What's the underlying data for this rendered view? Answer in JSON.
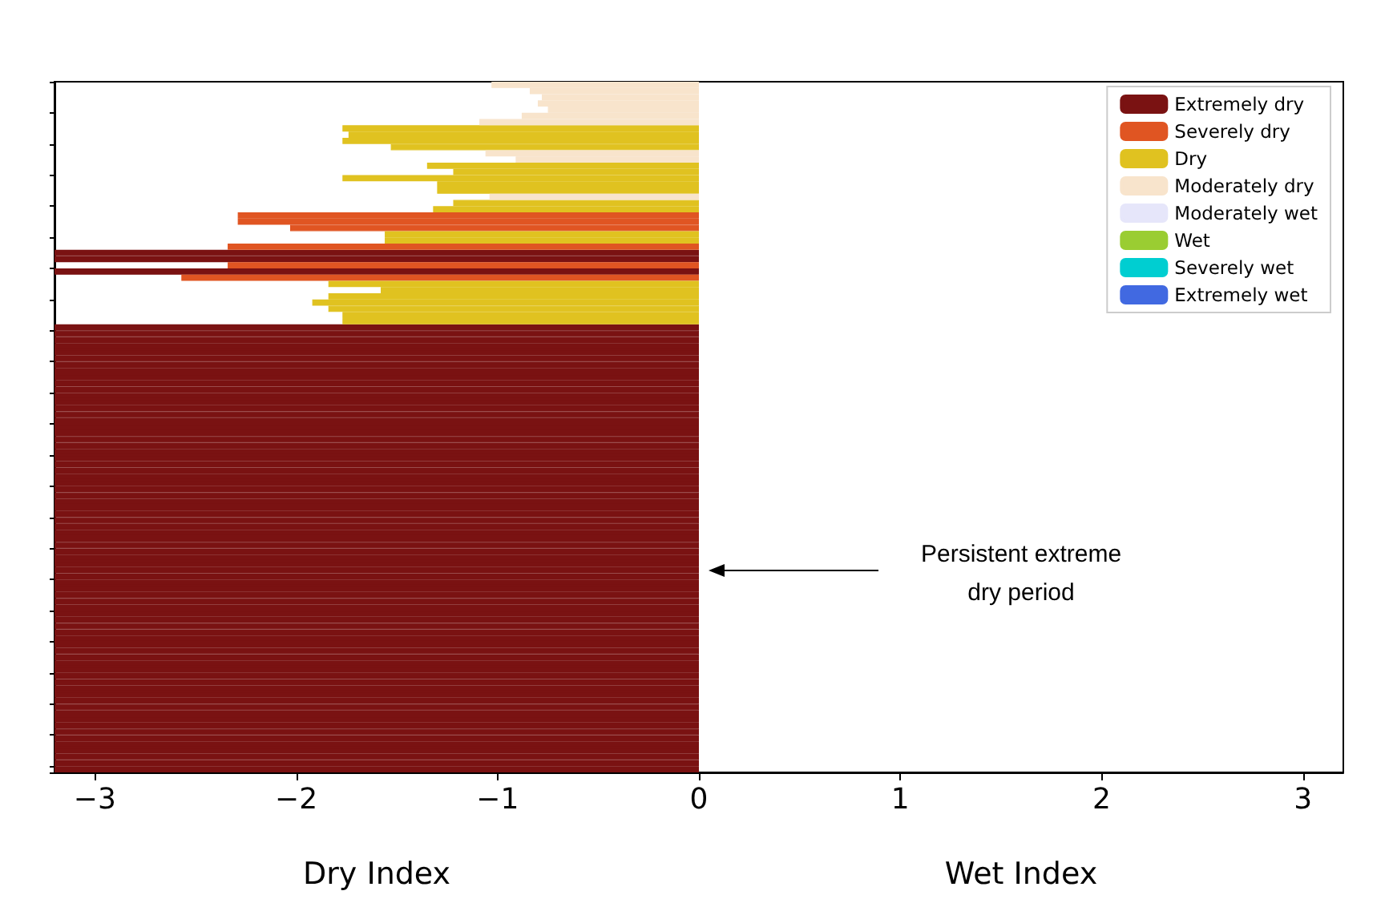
{
  "chart_data": {
    "type": "bar",
    "orientation": "horizontal",
    "xlabel": "Dry Index",
    "annotations": [
      "Wet Index",
      "Persistent extreme\ndry period"
    ],
    "categories": [
      null,
      null,
      null,
      null,
      null,
      null,
      null,
      null,
      null,
      null,
      null,
      null,
      null,
      null,
      null,
      null,
      null,
      null,
      null,
      null,
      null,
      null,
      null,
      null,
      null,
      null,
      null,
      null,
      null,
      null,
      null,
      null,
      null,
      null,
      null,
      null,
      null,
      null,
      null,
      null,
      null,
      null,
      null,
      null,
      null,
      null,
      null,
      null,
      null,
      null,
      null,
      null,
      null,
      null,
      null,
      null,
      null,
      null,
      null,
      null,
      null,
      null,
      null,
      null,
      null,
      null,
      null,
      null,
      null,
      null,
      null,
      null,
      null,
      null,
      null,
      null,
      null,
      null,
      null,
      null,
      null,
      null,
      null,
      null,
      null,
      null,
      null,
      null,
      null,
      null,
      null,
      null,
      null,
      null,
      null,
      null,
      null,
      null,
      null,
      null,
      null,
      null,
      null,
      null,
      null,
      null,
      null,
      null,
      null,
      null,
      null
    ],
    "series": [
      {
        "name": "Extremely dry",
        "color": "#7a1212",
        "values": [
          null,
          null,
          null,
          null,
          null,
          null,
          null,
          null,
          null,
          null,
          null,
          null,
          null,
          null,
          null,
          null,
          null,
          null,
          null,
          null,
          null,
          null,
          null,
          null,
          null,
          null,
          null,
          -3.2,
          -3.2,
          null,
          -3.2,
          null,
          null,
          null,
          null,
          null,
          null,
          null,
          null,
          -3.2,
          -3.2,
          -3.2,
          -3.2,
          -3.2,
          -3.2,
          -3.2,
          -3.2,
          -3.2,
          -3.2,
          -3.2,
          -3.2,
          -3.2,
          -3.2,
          -3.2,
          -3.2,
          -3.2,
          -3.2,
          -3.2,
          -3.2,
          -3.2,
          -3.2,
          -3.2,
          -3.2,
          -3.2,
          -3.2,
          -3.2,
          -3.2,
          -3.2,
          -3.2,
          -3.2,
          -3.2,
          -3.2,
          -3.2,
          -3.2,
          -3.2,
          -3.2,
          -3.2,
          -3.2,
          -3.2,
          -3.2,
          -3.2,
          -3.2,
          -3.2,
          -3.2,
          -3.2,
          -3.2,
          -3.2,
          -3.2,
          -3.2,
          -3.2,
          -3.2,
          -3.2,
          -3.2,
          -3.2,
          -3.2,
          -3.2,
          -3.2,
          -3.2,
          -3.2,
          -3.2,
          -3.2,
          -3.2,
          -3.2,
          -3.2,
          -3.2,
          -3.2,
          -3.2,
          -3.2,
          -3.2,
          -3.2,
          -3.2
        ]
      },
      {
        "name": "Severely dry",
        "color": "#e05522",
        "values": [
          null,
          null,
          null,
          null,
          null,
          null,
          null,
          null,
          null,
          null,
          null,
          null,
          null,
          null,
          null,
          null,
          null,
          null,
          null,
          null,
          null,
          -2.29,
          -2.29,
          -2.03,
          null,
          null,
          -2.34,
          null,
          null,
          -2.34,
          null,
          -2.57,
          null,
          null,
          null,
          null,
          null,
          null,
          null,
          null,
          null,
          null,
          null,
          null,
          null,
          null,
          null,
          null,
          null,
          null,
          null,
          null,
          null,
          null,
          null,
          null,
          null,
          null,
          null,
          null,
          null,
          null,
          null,
          null,
          null,
          null,
          null,
          null,
          null,
          null,
          null,
          null,
          null,
          null,
          null,
          null,
          null,
          null,
          null,
          null,
          null,
          null,
          null,
          null,
          null,
          null,
          null,
          null,
          null,
          null,
          null,
          null,
          null,
          null,
          null,
          null,
          null,
          null,
          null,
          null,
          null,
          null,
          null,
          null,
          null,
          null,
          null,
          null,
          null,
          null,
          null
        ]
      },
      {
        "name": "Dry",
        "color": "#e0c220",
        "values": [
          null,
          null,
          null,
          null,
          null,
          null,
          null,
          -1.77,
          -1.74,
          -1.77,
          -1.53,
          null,
          null,
          -1.35,
          -1.22,
          -1.77,
          -1.3,
          -1.3,
          null,
          -1.22,
          -1.32,
          null,
          null,
          null,
          -1.56,
          -1.56,
          null,
          null,
          null,
          null,
          null,
          null,
          -1.84,
          -1.58,
          -1.84,
          -1.92,
          -1.84,
          -1.77,
          -1.77,
          null,
          null,
          null,
          null,
          null,
          null,
          null,
          null,
          null,
          null,
          null,
          null,
          null,
          null,
          null,
          null,
          null,
          null,
          null,
          null,
          null,
          null,
          null,
          null,
          null,
          null,
          null,
          null,
          null,
          null,
          null,
          null,
          null,
          null,
          null,
          null,
          null,
          null,
          null,
          null,
          null,
          null,
          null,
          null,
          null,
          null,
          null,
          null,
          null,
          null,
          null,
          null,
          null,
          null,
          null,
          null,
          null,
          null,
          null,
          null,
          null,
          null,
          null,
          null,
          null,
          null,
          null,
          null,
          null,
          null,
          null,
          null
        ]
      },
      {
        "name": "Moderately dry",
        "color": "#f8e4cc",
        "values": [
          -1.03,
          -0.84,
          -0.78,
          -0.8,
          -0.75,
          -0.88,
          -1.09,
          null,
          null,
          null,
          null,
          -1.06,
          -0.91,
          null,
          null,
          null,
          null,
          null,
          -1.04,
          null,
          null,
          null,
          null,
          null,
          null,
          null,
          null,
          null,
          null,
          null,
          null,
          null,
          null,
          null,
          null,
          null,
          null,
          null,
          null,
          null,
          null,
          null,
          null,
          null,
          null,
          null,
          null,
          null,
          null,
          null,
          null,
          null,
          null,
          null,
          null,
          null,
          null,
          null,
          null,
          null,
          null,
          null,
          null,
          null,
          null,
          null,
          null,
          null,
          null,
          null,
          null,
          null,
          null,
          null,
          null,
          null,
          null,
          null,
          null,
          null,
          null,
          null,
          null,
          null,
          null,
          null,
          null,
          null,
          null,
          null,
          null,
          null,
          null,
          null,
          null,
          null,
          null,
          null,
          null,
          null,
          null,
          null,
          null,
          null,
          null,
          null,
          null,
          null,
          null,
          null,
          null
        ]
      },
      {
        "name": "Moderately wet",
        "color": "#e6e6fa",
        "values": [
          null,
          null,
          null,
          null,
          null,
          null,
          null,
          null,
          null,
          null,
          null,
          null,
          null,
          null,
          null,
          null,
          null,
          null,
          null,
          null,
          null,
          null,
          null,
          null,
          null,
          null,
          null,
          null,
          null,
          null,
          null,
          null,
          null,
          null,
          null,
          null,
          null,
          null,
          null,
          null,
          null,
          null,
          null,
          null,
          null,
          null,
          null,
          null,
          null,
          null,
          null,
          null,
          null,
          null,
          null,
          null,
          null,
          null,
          null,
          null,
          null,
          null,
          null,
          null,
          null,
          null,
          null,
          null,
          null,
          null,
          null,
          null,
          null,
          null,
          null,
          null,
          null,
          null,
          null,
          null,
          null,
          null,
          null,
          null,
          null,
          null,
          null,
          null,
          null,
          null,
          null,
          null,
          null,
          null,
          null,
          null,
          null,
          null,
          null,
          null,
          null,
          null,
          null,
          null,
          null,
          null,
          null,
          null,
          null,
          null,
          null
        ]
      },
      {
        "name": "Wet",
        "color": "#9acd32",
        "values": [
          null,
          null,
          null,
          null,
          null,
          null,
          null,
          null,
          null,
          null,
          null,
          null,
          null,
          null,
          null,
          null,
          null,
          null,
          null,
          null,
          null,
          null,
          null,
          null,
          null,
          null,
          null,
          null,
          null,
          null,
          null,
          null,
          null,
          null,
          null,
          null,
          null,
          null,
          null,
          null,
          null,
          null,
          null,
          null,
          null,
          null,
          null,
          null,
          null,
          null,
          null,
          null,
          null,
          null,
          null,
          null,
          null,
          null,
          null,
          null,
          null,
          null,
          null,
          null,
          null,
          null,
          null,
          null,
          null,
          null,
          null,
          null,
          null,
          null,
          null,
          null,
          null,
          null,
          null,
          null,
          null,
          null,
          null,
          null,
          null,
          null,
          null,
          null,
          null,
          null,
          null,
          null,
          null,
          null,
          null,
          null,
          null,
          null,
          null,
          null,
          null,
          null,
          null,
          null,
          null,
          null,
          null,
          null,
          null,
          null,
          null
        ]
      },
      {
        "name": "Severely wet",
        "color": "#00ced1",
        "values": [
          null,
          null,
          null,
          null,
          null,
          null,
          null,
          null,
          null,
          null,
          null,
          null,
          null,
          null,
          null,
          null,
          null,
          null,
          null,
          null,
          null,
          null,
          null,
          null,
          null,
          null,
          null,
          null,
          null,
          null,
          null,
          null,
          null,
          null,
          null,
          null,
          null,
          null,
          null,
          null,
          null,
          null,
          null,
          null,
          null,
          null,
          null,
          null,
          null,
          null,
          null,
          null,
          null,
          null,
          null,
          null,
          null,
          null,
          null,
          null,
          null,
          null,
          null,
          null,
          null,
          null,
          null,
          null,
          null,
          null,
          null,
          null,
          null,
          null,
          null,
          null,
          null,
          null,
          null,
          null,
          null,
          null,
          null,
          null,
          null,
          null,
          null,
          null,
          null,
          null,
          null,
          null,
          null,
          null,
          null,
          null,
          null,
          null,
          null,
          null,
          null,
          null,
          null,
          null,
          null,
          null,
          null,
          null,
          null,
          null,
          null
        ]
      },
      {
        "name": "Extremely wet",
        "color": "#4169e1",
        "values": [
          null,
          null,
          null,
          null,
          null,
          null,
          null,
          null,
          null,
          null,
          null,
          null,
          null,
          null,
          null,
          null,
          null,
          null,
          null,
          null,
          null,
          null,
          null,
          null,
          null,
          null,
          null,
          null,
          null,
          null,
          null,
          null,
          null,
          null,
          null,
          null,
          null,
          null,
          null,
          null,
          null,
          null,
          null,
          null,
          null,
          null,
          null,
          null,
          null,
          null,
          null,
          null,
          null,
          null,
          null,
          null,
          null,
          null,
          null,
          null,
          null,
          null,
          null,
          null,
          null,
          null,
          null,
          null,
          null,
          null,
          null,
          null,
          null,
          null,
          null,
          null,
          null,
          null,
          null,
          null,
          null,
          null,
          null,
          null,
          null,
          null,
          null,
          null,
          null,
          null,
          null,
          null,
          null,
          null,
          null,
          null,
          null,
          null,
          null,
          null,
          null,
          null,
          null,
          null,
          null,
          null,
          null,
          null,
          null,
          null,
          null
        ]
      }
    ],
    "xlim": [
      -3.2,
      3.2
    ],
    "xticks": [
      -3,
      -2,
      -1,
      0,
      1,
      2,
      3
    ],
    "legend": "top right",
    "grid": false,
    "tick_labels": "x"
  }
}
